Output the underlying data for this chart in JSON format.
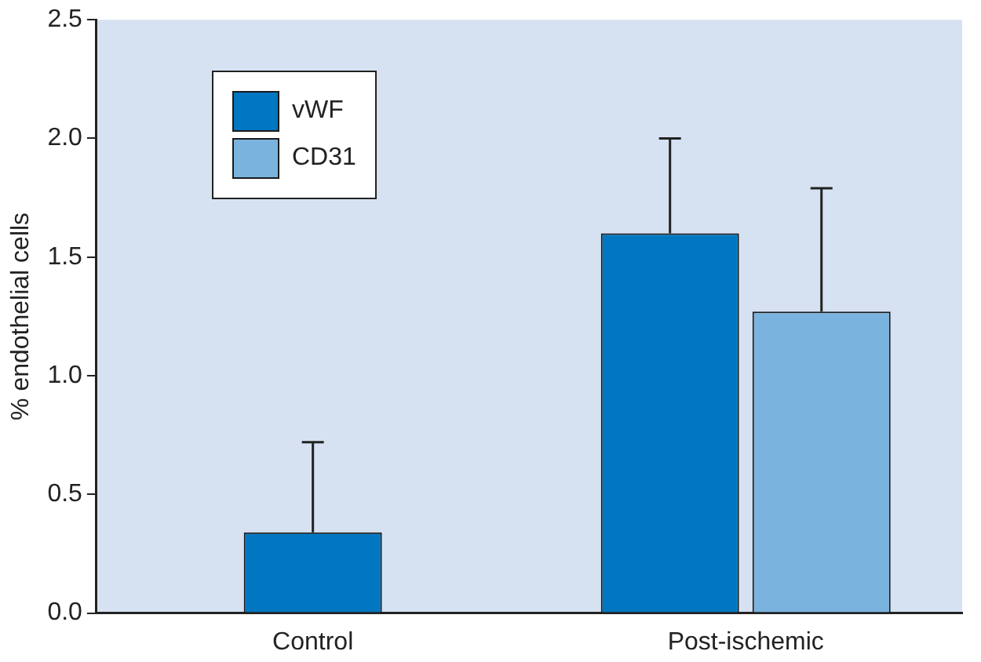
{
  "chart_data": {
    "type": "bar",
    "ylabel": "% endothelial cells",
    "categories": [
      "Control",
      "Post-ischemic"
    ],
    "series": [
      {
        "name": "vWF",
        "color": "#0077c0",
        "values": [
          0.34,
          1.6
        ],
        "errors": [
          [
            0.34,
            0.72
          ],
          [
            1.6,
            2.0
          ]
        ]
      },
      {
        "name": "CD31",
        "color": "#7ab3de",
        "values": [
          null,
          1.27
        ],
        "errors": [
          null,
          [
            1.27,
            1.79
          ]
        ]
      }
    ],
    "ylim": [
      0,
      2.5
    ],
    "yticks": [
      {
        "value": 0,
        "label": "0.0"
      },
      {
        "value": 0.5,
        "label": "0.5"
      },
      {
        "value": 1,
        "label": "1.0"
      },
      {
        "value": 1.5,
        "label": "1.5"
      },
      {
        "value": 2,
        "label": "2.0"
      },
      {
        "value": 2.5,
        "label": "2.5"
      }
    ],
    "grid": false,
    "legend": "top left"
  }
}
